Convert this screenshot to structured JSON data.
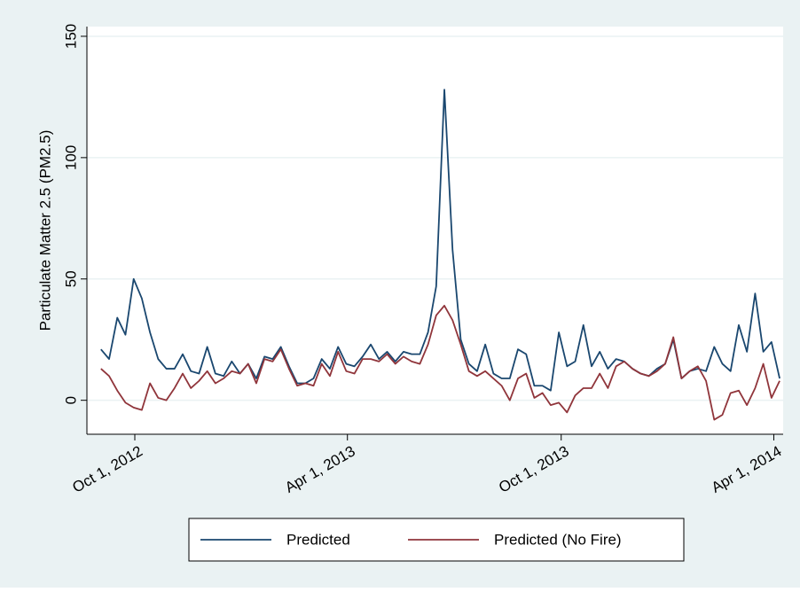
{
  "chart_data": {
    "type": "line",
    "y_label": "Particulate Matter 2.5 (PM2.5)",
    "x": [
      "2012-09-02",
      "2012-09-09",
      "2012-09-16",
      "2012-09-23",
      "2012-09-30",
      "2012-10-07",
      "2012-10-14",
      "2012-10-21",
      "2012-10-28",
      "2012-11-04",
      "2012-11-11",
      "2012-11-18",
      "2012-11-25",
      "2012-12-02",
      "2012-12-09",
      "2012-12-16",
      "2012-12-23",
      "2012-12-30",
      "2013-01-06",
      "2013-01-13",
      "2013-01-20",
      "2013-01-27",
      "2013-02-03",
      "2013-02-10",
      "2013-02-17",
      "2013-02-24",
      "2013-03-03",
      "2013-03-10",
      "2013-03-17",
      "2013-03-24",
      "2013-03-31",
      "2013-04-07",
      "2013-04-14",
      "2013-04-21",
      "2013-04-28",
      "2013-05-05",
      "2013-05-12",
      "2013-05-19",
      "2013-05-26",
      "2013-06-02",
      "2013-06-09",
      "2013-06-16",
      "2013-06-23",
      "2013-06-30",
      "2013-07-07",
      "2013-07-14",
      "2013-07-21",
      "2013-07-28",
      "2013-08-04",
      "2013-08-11",
      "2013-08-18",
      "2013-08-25",
      "2013-09-01",
      "2013-09-08",
      "2013-09-15",
      "2013-09-22",
      "2013-09-29",
      "2013-10-06",
      "2013-10-13",
      "2013-10-20",
      "2013-10-27",
      "2013-11-03",
      "2013-11-10",
      "2013-11-17",
      "2013-11-24",
      "2013-12-01",
      "2013-12-08",
      "2013-12-15",
      "2013-12-22",
      "2013-12-29",
      "2014-01-05",
      "2014-01-12",
      "2014-01-19",
      "2014-01-26",
      "2014-02-02",
      "2014-02-09",
      "2014-02-16",
      "2014-02-23",
      "2014-03-02",
      "2014-03-09",
      "2014-03-16",
      "2014-03-23",
      "2014-03-30",
      "2014-04-06"
    ],
    "series": [
      {
        "name": "Predicted",
        "color": "#1a476f",
        "values": [
          21,
          17,
          34,
          27,
          50,
          42,
          28,
          17,
          13,
          13,
          19,
          12,
          11,
          22,
          11,
          10,
          16,
          11,
          15,
          9,
          18,
          17,
          22,
          14,
          7,
          7,
          9,
          17,
          13,
          22,
          15,
          14,
          18,
          23,
          17,
          20,
          16,
          20,
          19,
          19,
          28,
          47,
          128,
          62,
          25,
          15,
          12,
          23,
          11,
          9,
          9,
          21,
          19,
          6,
          6,
          4,
          28,
          14,
          16,
          31,
          14,
          20,
          13,
          17,
          16,
          13,
          11,
          10,
          13,
          15,
          25,
          9,
          12,
          13,
          12,
          22,
          15,
          12,
          31,
          20,
          44,
          20,
          24,
          9
        ]
      },
      {
        "name": "Predicted (No Fire)",
        "color": "#90353b",
        "values": [
          13,
          10,
          4,
          -1,
          -3,
          -4,
          7,
          1,
          0,
          5,
          11,
          5,
          8,
          12,
          7,
          9,
          12,
          11,
          15,
          7,
          17,
          16,
          21,
          13,
          6,
          7,
          6,
          15,
          10,
          20,
          12,
          11,
          17,
          17,
          16,
          19,
          15,
          18,
          16,
          15,
          23,
          35,
          39,
          33,
          23,
          12,
          10,
          12,
          9,
          6,
          0,
          9,
          11,
          1,
          3,
          -2,
          -1,
          -5,
          2,
          5,
          5,
          11,
          5,
          14,
          16,
          13,
          11,
          10,
          12,
          15,
          26,
          9,
          12,
          14,
          8,
          -8,
          -6,
          3,
          4,
          -2,
          5,
          15,
          1,
          8
        ]
      }
    ],
    "xlim": [
      "2012-08-21",
      "2014-04-09"
    ],
    "xticks": [
      {
        "value": "2012-10-01",
        "label": "Oct 1, 2012"
      },
      {
        "value": "2013-04-01",
        "label": "Apr 1, 2013"
      },
      {
        "value": "2013-10-01",
        "label": "Oct 1, 2013"
      },
      {
        "value": "2014-04-01",
        "label": "Apr 1, 2014"
      }
    ],
    "ylim": [
      -14,
      154
    ],
    "yticks": [
      0,
      50,
      100,
      150
    ],
    "grid": true,
    "legend": "bottom"
  }
}
